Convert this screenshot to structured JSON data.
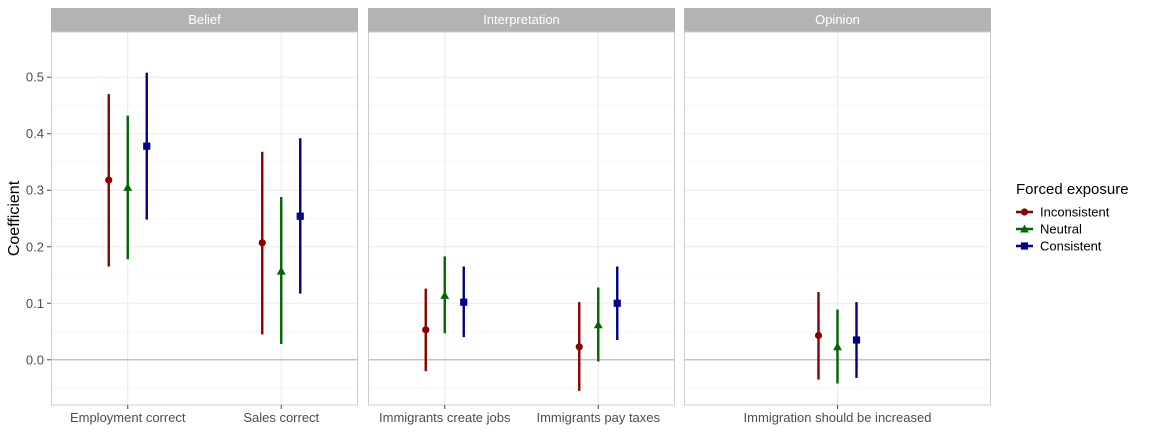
{
  "chart_data": {
    "type": "scatter",
    "subtype": "point-range coefficient plot, faceted",
    "ylabel": "Coefficient",
    "ylim": [
      -0.08,
      0.58
    ],
    "yticks": [
      0.0,
      0.1,
      0.2,
      0.3,
      0.4,
      0.5
    ],
    "ytick_labels": [
      "0.0",
      "0.1",
      "0.2",
      "0.3",
      "0.4",
      "0.5"
    ],
    "reference_line": 0,
    "grid": true,
    "legend": {
      "title": "Forced exposure",
      "placement": "right",
      "entries": [
        {
          "name": "Inconsistent",
          "color": "#8b0000",
          "shape": "circle"
        },
        {
          "name": "Neutral",
          "color": "#006400",
          "shape": "triangle"
        },
        {
          "name": "Consistent",
          "color": "#00008b",
          "shape": "square"
        }
      ]
    },
    "facets": [
      {
        "title": "Belief",
        "categories": [
          "Employment correct",
          "Sales correct"
        ],
        "series": [
          {
            "name": "Inconsistent",
            "estimate": [
              0.318,
              0.207
            ],
            "low": [
              0.165,
              0.045
            ],
            "high": [
              0.47,
              0.368
            ]
          },
          {
            "name": "Neutral",
            "estimate": [
              0.305,
              0.157
            ],
            "low": [
              0.178,
              0.028
            ],
            "high": [
              0.432,
              0.288
            ]
          },
          {
            "name": "Consistent",
            "estimate": [
              0.378,
              0.254
            ],
            "low": [
              0.248,
              0.117
            ],
            "high": [
              0.508,
              0.392
            ]
          }
        ]
      },
      {
        "title": "Interpretation",
        "categories": [
          "Immigrants create jobs",
          "Immigrants pay taxes"
        ],
        "series": [
          {
            "name": "Inconsistent",
            "estimate": [
              0.053,
              0.023
            ],
            "low": [
              -0.02,
              -0.055
            ],
            "high": [
              0.126,
              0.102
            ]
          },
          {
            "name": "Neutral",
            "estimate": [
              0.114,
              0.062
            ],
            "low": [
              0.047,
              -0.003
            ],
            "high": [
              0.183,
              0.128
            ]
          },
          {
            "name": "Consistent",
            "estimate": [
              0.102,
              0.1
            ],
            "low": [
              0.04,
              0.035
            ],
            "high": [
              0.165,
              0.165
            ]
          }
        ]
      },
      {
        "title": "Opinion",
        "categories": [
          "Immigration should be increased"
        ],
        "series": [
          {
            "name": "Inconsistent",
            "estimate": [
              0.043
            ],
            "low": [
              -0.035
            ],
            "high": [
              0.12
            ]
          },
          {
            "name": "Neutral",
            "estimate": [
              0.023
            ],
            "low": [
              -0.042
            ],
            "high": [
              0.089
            ]
          },
          {
            "name": "Consistent",
            "estimate": [
              0.035
            ],
            "low": [
              -0.032
            ],
            "high": [
              0.102
            ]
          }
        ]
      }
    ]
  }
}
